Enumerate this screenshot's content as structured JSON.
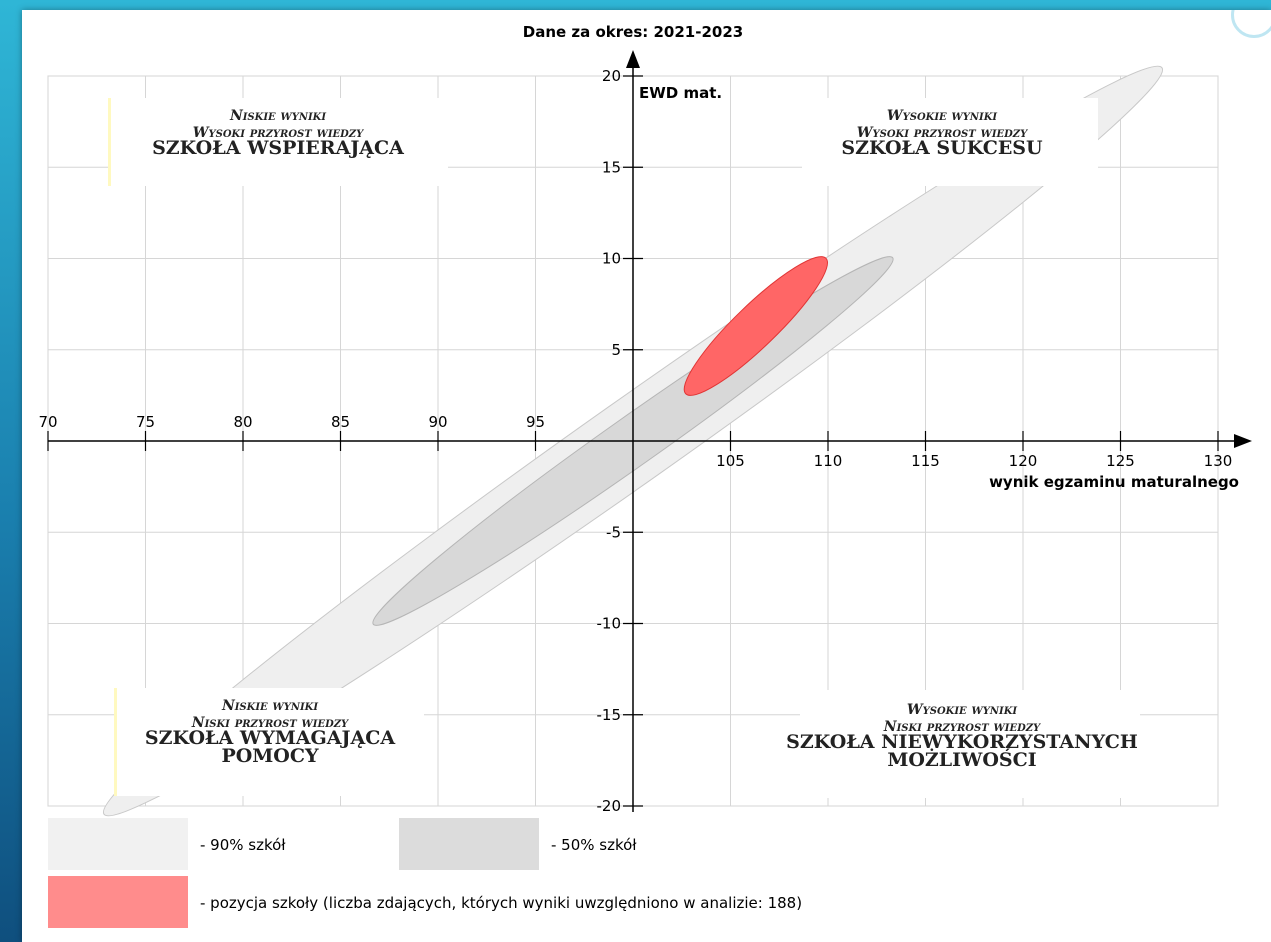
{
  "chart_data": {
    "type": "scatter",
    "title": "Dane za okres: 2021-2023",
    "xlabel": "wynik egzaminu maturalnego",
    "ylabel": "EWD mat.",
    "xlim": [
      70,
      130
    ],
    "ylim": [
      -20,
      20
    ],
    "x_ticks": [
      70,
      75,
      80,
      85,
      90,
      95,
      105,
      110,
      115,
      120,
      125,
      130
    ],
    "y_ticks": [
      20,
      15,
      10,
      5,
      -5,
      -10,
      -15,
      -20
    ],
    "grid": true,
    "quadrants": [
      {
        "id": "top-left",
        "lines": [
          "Niskie wyniki",
          "Wysoki przyrost wiedzy",
          "SZKOŁA WSPIERAJĄCA"
        ],
        "colors": [
          "#fff9c0"
        ]
      },
      {
        "id": "top-right",
        "lines": [
          "Wysokie wyniki",
          "Wysoki przyrost wiedzy",
          "SZKOŁA SUKCESU"
        ],
        "colors": []
      },
      {
        "id": "bottom-left",
        "lines": [
          "Niskie wyniki",
          "Niski przyrost wiedzy",
          "SZKOŁA WYMAGAJĄCA",
          "POMOCY"
        ],
        "colors": [
          "#fff9c0"
        ]
      },
      {
        "id": "bottom-right",
        "lines": [
          "Wysokie wyniki",
          "Niski przyrost wiedzy",
          "SZKOŁA NIEWYKORZYSTANYCH",
          "MOŻLIWOŚCI"
        ],
        "colors": []
      }
    ],
    "ellipses": [
      {
        "id": "schools-90",
        "cx": 100,
        "cy": 0,
        "rx": 33.2,
        "ry": 2.3,
        "angle_deg": 35.2,
        "color": "#efefef",
        "stroke": "#c8c8c8"
      },
      {
        "id": "schools-50",
        "cx": 100,
        "cy": 0,
        "rx": 16.3,
        "ry": 1.35,
        "angle_deg": 35.2,
        "color": "#d8d8d8",
        "stroke": "#b5b5b5"
      },
      {
        "id": "school-position",
        "cx": 106.3,
        "cy": 6.3,
        "rx": 5.0,
        "ry": 1.15,
        "angle_deg": 44.0,
        "color": "#ff6666",
        "stroke": "#e03535"
      }
    ],
    "legend": [
      {
        "label": "- 90% szkół",
        "color": "#f1f1f1"
      },
      {
        "label": "- 50% szkół",
        "color": "#dcdcdc"
      },
      {
        "label": "- pozycja szkoły (liczba zdających, których wyniki uwzględniono w analizie: 188)",
        "color": "#ff8c8c"
      }
    ]
  }
}
